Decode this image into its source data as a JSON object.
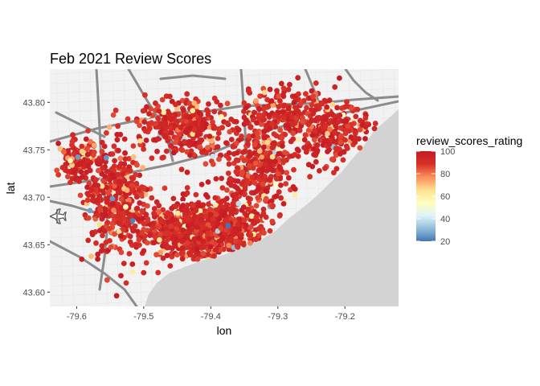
{
  "chart_data": {
    "type": "scatter",
    "title": "Feb 2021 Review Scores",
    "xlabel": "lon",
    "ylabel": "lat",
    "xlim": [
      -79.64,
      -79.12
    ],
    "ylim": [
      43.585,
      43.835
    ],
    "x_ticks": [
      -79.6,
      -79.5,
      -79.4,
      -79.3,
      -79.2
    ],
    "y_ticks": [
      43.6,
      43.65,
      43.7,
      43.75,
      43.8
    ],
    "x_tick_labels": [
      "-79.6",
      "-79.5",
      "-79.4",
      "-79.3",
      "-79.2"
    ],
    "y_tick_labels": [
      "43.60",
      "43.65",
      "43.70",
      "43.75",
      "43.80"
    ],
    "legend": {
      "title": "review_scores_rating",
      "placement": "right",
      "range": [
        20,
        100
      ],
      "ticks": [
        20,
        40,
        60,
        80,
        100
      ],
      "tick_labels": [
        "20",
        "40",
        "60",
        "80",
        "100"
      ],
      "colors": [
        "#4575b4",
        "#91bfdb",
        "#e0f3f8",
        "#ffffbf",
        "#fee090",
        "#fc8d59",
        "#d73027",
        "#c51b25"
      ]
    },
    "basemap": "grey road map of Toronto with Lake Ontario shaded grey",
    "lake_color": "#d3d3d3",
    "land_color": "#f2f2f2",
    "road_color": "#8c8c8c",
    "point_density_clusters": [
      {
        "lon": -79.41,
        "lat": 43.665,
        "spread_lon": 0.07,
        "spread_lat": 0.025,
        "weight": 0.4
      },
      {
        "lon": -79.44,
        "lat": 43.775,
        "spread_lon": 0.05,
        "spread_lat": 0.025,
        "weight": 0.12
      },
      {
        "lon": -79.33,
        "lat": 43.73,
        "spread_lon": 0.05,
        "spread_lat": 0.04,
        "weight": 0.12
      },
      {
        "lon": -79.54,
        "lat": 43.7,
        "spread_lon": 0.04,
        "spread_lat": 0.05,
        "weight": 0.14
      },
      {
        "lon": -79.22,
        "lat": 43.77,
        "spread_lon": 0.05,
        "spread_lat": 0.03,
        "weight": 0.1
      },
      {
        "lon": -79.3,
        "lat": 43.79,
        "spread_lon": 0.05,
        "spread_lat": 0.02,
        "weight": 0.07
      },
      {
        "lon": -79.6,
        "lat": 43.74,
        "spread_lon": 0.02,
        "spread_lat": 0.02,
        "weight": 0.05
      }
    ],
    "score_distribution": {
      "mostly": 97,
      "common_range": [
        85,
        100
      ],
      "rare_low": [
        20,
        60
      ]
    }
  }
}
